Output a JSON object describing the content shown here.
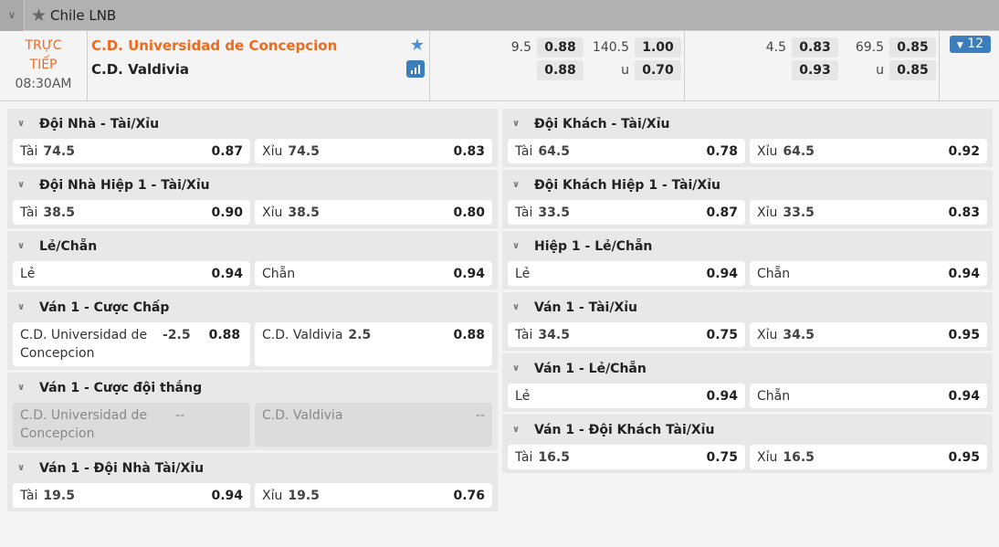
{
  "league": {
    "name": "Chile LNB"
  },
  "match": {
    "status": "TRỰC TIẾP",
    "time": "08:30AM",
    "home": "C.D. Universidad de Concepcion",
    "away": "C.D. Valdivia",
    "more_count": "12",
    "odds_full": [
      {
        "lbl": "9.5",
        "v": "0.88",
        "lbl2": "140.5",
        "v2": "1.00"
      },
      {
        "lbl": "",
        "v": "0.88",
        "lbl2": "u",
        "v2": "0.70"
      }
    ],
    "odds_half": [
      {
        "lbl": "4.5",
        "v": "0.83",
        "lbl2": "69.5",
        "v2": "0.85"
      },
      {
        "lbl": "",
        "v": "0.93",
        "lbl2": "u",
        "v2": "0.85"
      }
    ]
  },
  "colors": {
    "accent": "#f06a1d",
    "brand": "#3c7dbb"
  },
  "left": [
    {
      "title": "Đội Nhà - Tài/Xỉu",
      "cells": [
        {
          "name": "Tài",
          "hd": "74.5",
          "price": "0.87"
        },
        {
          "name": "Xỉu",
          "hd": "74.5",
          "price": "0.83"
        }
      ]
    },
    {
      "title": "Đội Nhà Hiệp 1 - Tài/Xỉu",
      "cells": [
        {
          "name": "Tài",
          "hd": "38.5",
          "price": "0.90"
        },
        {
          "name": "Xỉu",
          "hd": "38.5",
          "price": "0.80"
        }
      ]
    },
    {
      "title": "Lẻ/Chẵn",
      "cells": [
        {
          "name": "Lẻ",
          "hd": "",
          "price": "0.94"
        },
        {
          "name": "Chẵn",
          "hd": "",
          "price": "0.94"
        }
      ]
    },
    {
      "title": "Ván 1 - Cược Chấp",
      "cells": [
        {
          "name": "C.D. Universidad de Concepcion",
          "hd": "-2.5",
          "price": "0.88",
          "wrap": true
        },
        {
          "name": "C.D. Valdivia",
          "hd": "2.5",
          "price": "0.88",
          "inline": true
        }
      ]
    },
    {
      "title": "Ván 1 - Cược đội thắng",
      "disabled": true,
      "cells": [
        {
          "name": "C.D. Universidad de Concepcion",
          "hd": "",
          "price": "--",
          "wrap": true
        },
        {
          "name": "C.D. Valdivia",
          "hd": "",
          "price": "--"
        }
      ]
    },
    {
      "title": "Ván 1 - Đội Nhà Tài/Xỉu",
      "cells": [
        {
          "name": "Tài",
          "hd": "19.5",
          "price": "0.94"
        },
        {
          "name": "Xỉu",
          "hd": "19.5",
          "price": "0.76"
        }
      ]
    }
  ],
  "right": [
    {
      "title": "Đội Khách - Tài/Xỉu",
      "cells": [
        {
          "name": "Tài",
          "hd": "64.5",
          "price": "0.78"
        },
        {
          "name": "Xỉu",
          "hd": "64.5",
          "price": "0.92"
        }
      ]
    },
    {
      "title": "Đội Khách Hiệp 1 - Tài/Xỉu",
      "cells": [
        {
          "name": "Tài",
          "hd": "33.5",
          "price": "0.87"
        },
        {
          "name": "Xỉu",
          "hd": "33.5",
          "price": "0.83"
        }
      ]
    },
    {
      "title": "Hiệp 1 - Lẻ/Chẵn",
      "cells": [
        {
          "name": "Lẻ",
          "hd": "",
          "price": "0.94"
        },
        {
          "name": "Chẵn",
          "hd": "",
          "price": "0.94"
        }
      ]
    },
    {
      "title": "Ván 1 - Tài/Xỉu",
      "cells": [
        {
          "name": "Tài",
          "hd": "34.5",
          "price": "0.75"
        },
        {
          "name": "Xỉu",
          "hd": "34.5",
          "price": "0.95"
        }
      ]
    },
    {
      "title": "Ván 1 - Lẻ/Chẵn",
      "cells": [
        {
          "name": "Lẻ",
          "hd": "",
          "price": "0.94"
        },
        {
          "name": "Chẵn",
          "hd": "",
          "price": "0.94"
        }
      ]
    },
    {
      "title": "Ván 1 - Đội Khách Tài/Xỉu",
      "cells": [
        {
          "name": "Tài",
          "hd": "16.5",
          "price": "0.75"
        },
        {
          "name": "Xỉu",
          "hd": "16.5",
          "price": "0.95"
        }
      ]
    }
  ]
}
